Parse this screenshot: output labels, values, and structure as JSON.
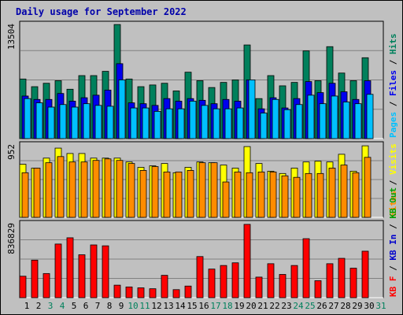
{
  "title": "Daily usage for September 2022",
  "colors": {
    "title": "#0000aa",
    "background": "#c0c0c0",
    "plot_bg": "#c0c0c0",
    "gridline": "#808080",
    "hits": "#00805c",
    "files": "#0000ee",
    "pages": "#00c0ff",
    "visits": "#ffff00",
    "sites": "#ff8c00",
    "kbytes": "#ff0000",
    "kb_in": "#0000cc",
    "kb_out": "#00a000",
    "weekend_label": "#00805c",
    "weekday_label": "#000000"
  },
  "chart_data": [
    {
      "type": "bar",
      "name_in_image": "hits-files-pages",
      "ymax_label": "13504",
      "ylim": [
        0,
        13504
      ],
      "right_legend": [
        {
          "label": "Pages",
          "color": "#00c0ff"
        },
        {
          "label": " / ",
          "color": "#000000"
        },
        {
          "label": "Files",
          "color": "#0000ee"
        },
        {
          "label": " / ",
          "color": "#000000"
        },
        {
          "label": "Hits",
          "color": "#00805c"
        }
      ],
      "categories": [
        "1",
        "2",
        "3",
        "4",
        "5",
        "6",
        "7",
        "8",
        "9",
        "10",
        "11",
        "12",
        "13",
        "14",
        "15",
        "16",
        "17",
        "18",
        "19",
        "20",
        "21",
        "22",
        "23",
        "24",
        "25",
        "26",
        "27",
        "28",
        "29",
        "30",
        "31"
      ],
      "series": [
        {
          "name": "Hits",
          "values": [
            7000,
            6100,
            6500,
            6800,
            5800,
            7400,
            7400,
            7900,
            13400,
            7000,
            6100,
            6300,
            6500,
            5600,
            7800,
            6800,
            6000,
            6600,
            6900,
            11000,
            4700,
            7400,
            6200,
            6600,
            10300,
            6800,
            10800,
            7700,
            6800,
            9500,
            0
          ]
        },
        {
          "name": "Files",
          "values": [
            5000,
            4600,
            4600,
            5300,
            4400,
            4800,
            5100,
            5700,
            8800,
            4200,
            4100,
            3900,
            4700,
            4400,
            4700,
            4500,
            4100,
            4600,
            4400,
            6900,
            3500,
            4800,
            3600,
            4700,
            6700,
            5400,
            6500,
            5500,
            4600,
            6800,
            0
          ]
        },
        {
          "name": "Pages",
          "values": [
            4700,
            4200,
            3700,
            4000,
            3700,
            4100,
            3900,
            3800,
            6900,
            3600,
            3600,
            3200,
            3500,
            3500,
            4400,
            3900,
            3500,
            3500,
            3600,
            6900,
            3000,
            4600,
            3400,
            4000,
            5100,
            4100,
            5000,
            4300,
            4100,
            5200,
            0
          ]
        }
      ]
    },
    {
      "type": "bar",
      "name_in_image": "visits-sites",
      "ymax_label": "952",
      "ylim": [
        0,
        952
      ],
      "right_legend": [
        {
          "label": "Sites",
          "color": "#ff8c00"
        },
        {
          "label": " / ",
          "color": "#000000"
        },
        {
          "label": "Visits",
          "color": "#ffff00"
        }
      ],
      "categories": [
        "1",
        "2",
        "3",
        "4",
        "5",
        "6",
        "7",
        "8",
        "9",
        "10",
        "11",
        "12",
        "13",
        "14",
        "15",
        "16",
        "17",
        "18",
        "19",
        "20",
        "21",
        "22",
        "23",
        "24",
        "25",
        "26",
        "27",
        "28",
        "29",
        "30",
        "31"
      ],
      "series": [
        {
          "name": "Visits",
          "values": [
            690,
            640,
            770,
            900,
            830,
            830,
            770,
            770,
            770,
            720,
            650,
            670,
            700,
            580,
            650,
            720,
            710,
            680,
            640,
            920,
            700,
            600,
            570,
            640,
            720,
            730,
            720,
            820,
            600,
            930,
            0
          ]
        },
        {
          "name": "Sites",
          "values": [
            580,
            640,
            710,
            790,
            720,
            720,
            740,
            760,
            740,
            700,
            610,
            660,
            590,
            590,
            610,
            710,
            710,
            460,
            590,
            580,
            590,
            590,
            540,
            520,
            570,
            570,
            640,
            680,
            580,
            780,
            0
          ]
        }
      ]
    },
    {
      "type": "bar",
      "name_in_image": "kbytes",
      "ymax_label": "836829",
      "ylim": [
        0,
        836829
      ],
      "right_legend": [
        {
          "label": "KB F",
          "color": "#ff0000"
        },
        {
          "label": " / ",
          "color": "#000000"
        },
        {
          "label": "KB In",
          "color": "#0000cc"
        },
        {
          "label": " / ",
          "color": "#000000"
        },
        {
          "label": "KB Out",
          "color": "#00a000"
        }
      ],
      "categories": [
        "1",
        "2",
        "3",
        "4",
        "5",
        "6",
        "7",
        "8",
        "9",
        "10",
        "11",
        "12",
        "13",
        "14",
        "15",
        "16",
        "17",
        "18",
        "19",
        "20",
        "21",
        "22",
        "23",
        "24",
        "25",
        "26",
        "27",
        "28",
        "29",
        "30",
        "31"
      ],
      "series": [
        {
          "name": "KB F",
          "values": [
            240000,
            420000,
            270000,
            600000,
            670000,
            480000,
            590000,
            580000,
            140000,
            120000,
            110000,
            100000,
            250000,
            90000,
            130000,
            460000,
            320000,
            360000,
            390000,
            820000,
            230000,
            380000,
            260000,
            360000,
            660000,
            190000,
            380000,
            440000,
            330000,
            520000,
            0
          ]
        }
      ]
    }
  ],
  "x_labels": [
    {
      "text": "1",
      "weekend": false
    },
    {
      "text": "2",
      "weekend": false
    },
    {
      "text": "3",
      "weekend": true
    },
    {
      "text": "4",
      "weekend": true
    },
    {
      "text": "5",
      "weekend": false
    },
    {
      "text": "6",
      "weekend": false
    },
    {
      "text": "7",
      "weekend": false
    },
    {
      "text": "8",
      "weekend": false
    },
    {
      "text": "9",
      "weekend": false
    },
    {
      "text": "10",
      "weekend": true
    },
    {
      "text": "11",
      "weekend": true
    },
    {
      "text": "12",
      "weekend": false
    },
    {
      "text": "13",
      "weekend": false
    },
    {
      "text": "14",
      "weekend": false
    },
    {
      "text": "15",
      "weekend": false
    },
    {
      "text": "16",
      "weekend": false
    },
    {
      "text": "17",
      "weekend": true
    },
    {
      "text": "18",
      "weekend": true
    },
    {
      "text": "19",
      "weekend": false
    },
    {
      "text": "20",
      "weekend": false
    },
    {
      "text": "21",
      "weekend": false
    },
    {
      "text": "22",
      "weekend": false
    },
    {
      "text": "23",
      "weekend": false
    },
    {
      "text": "24",
      "weekend": true
    },
    {
      "text": "25",
      "weekend": true
    },
    {
      "text": "26",
      "weekend": false
    },
    {
      "text": "27",
      "weekend": false
    },
    {
      "text": "28",
      "weekend": false
    },
    {
      "text": "29",
      "weekend": false
    },
    {
      "text": "30",
      "weekend": false
    },
    {
      "text": "31",
      "weekend": true
    }
  ]
}
